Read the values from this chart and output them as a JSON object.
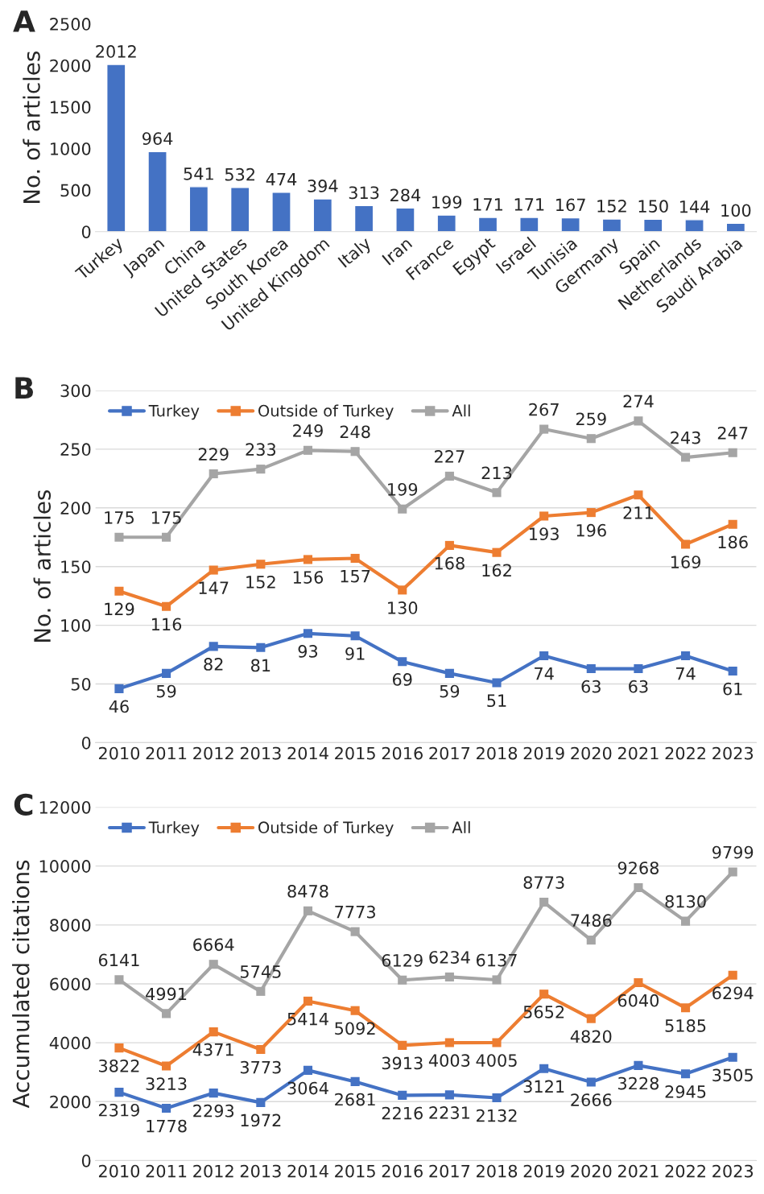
{
  "chart_data": [
    {
      "type": "bar",
      "annotations": [
        "A"
      ],
      "ylabel": "No. of articles",
      "categories": [
        "Turkey",
        "Japan",
        "China",
        "United States",
        "South Korea",
        "United Kingdom",
        "Italy",
        "Iran",
        "France",
        "Egypt",
        "Israel",
        "Tunisia",
        "Germany",
        "Spain",
        "Netherlands",
        "Saudi Arabia"
      ],
      "values": [
        2012,
        964,
        541,
        532,
        474,
        394,
        313,
        284,
        199,
        171,
        171,
        167,
        152,
        150,
        144,
        100
      ],
      "color": "#4472c4",
      "ylim": [
        0,
        2500
      ],
      "yticks": [
        0,
        500,
        1000,
        1500,
        2000,
        2500
      ],
      "grid": false,
      "data_labels": true
    },
    {
      "type": "line",
      "annotations": [
        "B"
      ],
      "ylabel": "No. of articles",
      "categories": [
        "2010",
        "2011",
        "2012",
        "2013",
        "2014",
        "2015",
        "2016",
        "2017",
        "2018",
        "2019",
        "2020",
        "2021",
        "2022",
        "2023"
      ],
      "series": [
        {
          "name": "Turkey",
          "color": "#4472c4",
          "values": [
            46,
            59,
            82,
            81,
            93,
            91,
            69,
            59,
            51,
            74,
            63,
            63,
            74,
            61
          ]
        },
        {
          "name": "Outside of Turkey",
          "color": "#ed7d31",
          "values": [
            129,
            116,
            147,
            152,
            156,
            157,
            130,
            168,
            162,
            193,
            196,
            211,
            169,
            186
          ]
        },
        {
          "name": "All",
          "color": "#a5a5a5",
          "values": [
            175,
            175,
            229,
            233,
            249,
            248,
            199,
            227,
            213,
            267,
            259,
            274,
            243,
            247
          ]
        }
      ],
      "ylim": [
        0,
        300
      ],
      "yticks": [
        0,
        50,
        100,
        150,
        200,
        250,
        300
      ],
      "grid": "y",
      "legend": "top left",
      "marker": "square",
      "line_style": "solid",
      "data_labels": true
    },
    {
      "type": "line",
      "annotations": [
        "C"
      ],
      "ylabel": "Accumulated citations",
      "categories": [
        "2010",
        "2011",
        "2012",
        "2013",
        "2014",
        "2015",
        "2016",
        "2017",
        "2018",
        "2019",
        "2020",
        "2021",
        "2022",
        "2023"
      ],
      "series": [
        {
          "name": "Turkey",
          "color": "#4472c4",
          "values": [
            2319,
            1778,
            2293,
            1972,
            3064,
            2681,
            2216,
            2231,
            2132,
            3121,
            2666,
            3228,
            2945,
            3505
          ]
        },
        {
          "name": "Outside of Turkey",
          "color": "#ed7d31",
          "values": [
            3822,
            3213,
            4371,
            3773,
            5414,
            5092,
            3913,
            4003,
            4005,
            5652,
            4820,
            6040,
            5185,
            6294
          ]
        },
        {
          "name": "All",
          "color": "#a5a5a5",
          "values": [
            6141,
            4991,
            6664,
            5745,
            8478,
            7773,
            6129,
            6234,
            6137,
            8773,
            7486,
            9268,
            8130,
            9799
          ]
        }
      ],
      "ylim": [
        0,
        12000
      ],
      "yticks": [
        0,
        2000,
        4000,
        6000,
        8000,
        10000,
        12000
      ],
      "grid": "y",
      "legend": "top left",
      "marker": "square",
      "line_style": "solid",
      "data_labels": true
    }
  ]
}
